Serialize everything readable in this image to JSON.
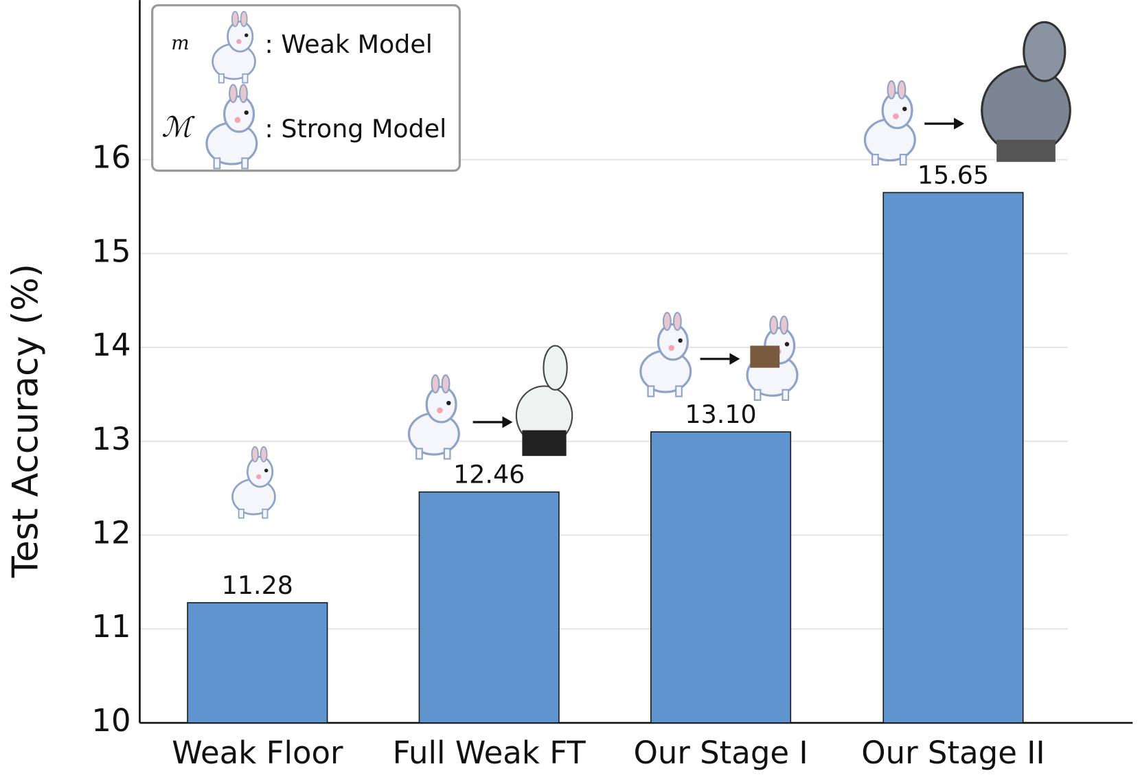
{
  "chart_data": {
    "type": "bar",
    "y_label": "Test Accuracy (%)",
    "categories": [
      "Weak Floor",
      "Full Weak FT",
      "Our Stage I",
      "Our Stage II"
    ],
    "values": [
      11.28,
      12.46,
      13.1,
      15.65
    ],
    "value_labels": [
      "11.28",
      "12.46",
      "13.10",
      "15.65"
    ],
    "color": "#6094cf",
    "ylim": [
      10,
      17.7
    ],
    "yticks": [
      10,
      11,
      12,
      13,
      14,
      15,
      16
    ],
    "grid": true,
    "legend": {
      "position": "upper left",
      "entries": [
        {
          "symbol": "m",
          "label": ": Weak Model"
        },
        {
          "symbol": "ℳ",
          "label": ": Strong Model"
        }
      ]
    }
  }
}
